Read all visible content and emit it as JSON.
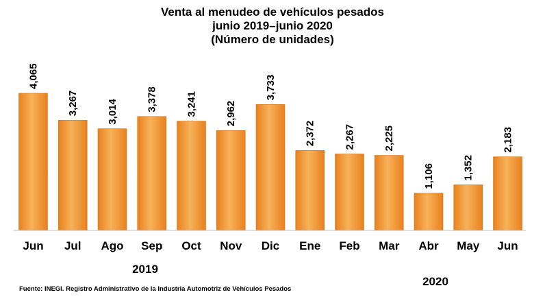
{
  "title_lines": [
    "Venta al menudeo de vehículos pesados",
    "junio 2019–junio 2020",
    "(Número de unidades)"
  ],
  "source": "Fuente: INEGI. Registro Administrativo de la Industria Automotriz de Vehículos Pesados",
  "colors": {
    "bar_light": "#f7b25a",
    "bar_dark": "#e8811f",
    "axis": "#bfbfbf"
  },
  "chart_data": {
    "type": "bar",
    "categories": [
      "Jun",
      "Jul",
      "Ago",
      "Sep",
      "Oct",
      "Nov",
      "Dic",
      "Ene",
      "Feb",
      "Mar",
      "Abr",
      "May",
      "Jun"
    ],
    "values": [
      4065,
      3267,
      3014,
      3378,
      3241,
      2962,
      3733,
      2372,
      2267,
      2225,
      1106,
      1352,
      2183
    ],
    "value_labels": [
      "4,065",
      "3,267",
      "3,014",
      "3,378",
      "3,241",
      "2,962",
      "3,733",
      "2,372",
      "2,267",
      "2,225",
      "1,106",
      "1,352",
      "2,183"
    ],
    "year_labels": [
      {
        "text": "2019",
        "first_index": 0,
        "last_index": 6
      },
      {
        "text": "2020",
        "first_index": 7,
        "last_index": 12
      }
    ],
    "ylim": [
      0,
      4065
    ],
    "grid": false,
    "legend": "none"
  }
}
